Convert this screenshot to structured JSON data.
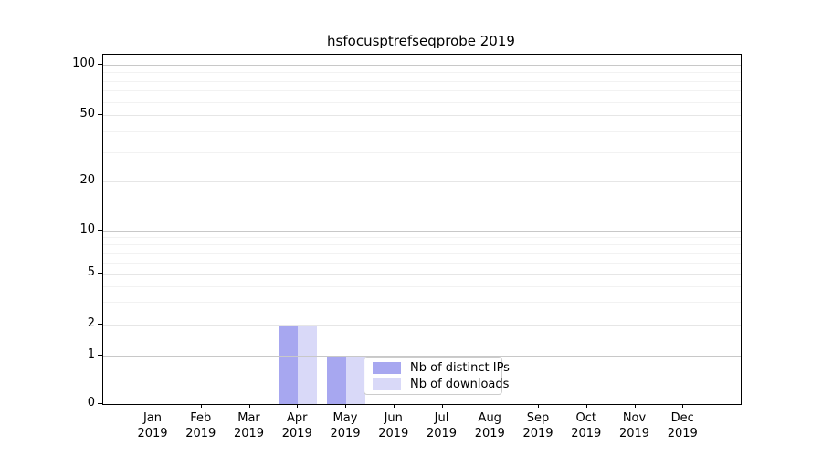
{
  "title": "hsfocusptrefseqprobe 2019",
  "chart_data": {
    "type": "bar",
    "title": "hsfocusptrefseqprobe 2019",
    "categories": [
      "Jan",
      "Feb",
      "Mar",
      "Apr",
      "May",
      "Jun",
      "Jul",
      "Aug",
      "Sep",
      "Oct",
      "Nov",
      "Dec"
    ],
    "category_year": "2019",
    "series": [
      {
        "name": "Nb of distinct IPs",
        "color": "#a7a7f0",
        "values": [
          0,
          0,
          0,
          2,
          1,
          0,
          0,
          0,
          0,
          0,
          0,
          0
        ]
      },
      {
        "name": "Nb of downloads",
        "color": "#d9d9f8",
        "values": [
          0,
          0,
          0,
          2,
          1,
          0,
          0,
          0,
          0,
          0,
          0,
          0
        ]
      }
    ],
    "xlabel": "",
    "ylabel": "",
    "yscale": "symlog",
    "ylim": [
      0,
      110
    ],
    "yticks": [
      0,
      1,
      2,
      5,
      10,
      20,
      50,
      100
    ],
    "minor_grid_values": [
      3,
      4,
      6,
      7,
      8,
      9,
      30,
      40,
      60,
      70,
      80,
      90
    ],
    "grid": "horizontal, major and minor",
    "legend_position": "lower center inside plot",
    "colors": {
      "axis": "#000000",
      "grid_major": "#c8c8c8",
      "grid_minor": "#f2f2f2",
      "background": "#ffffff",
      "legend_border": "#cccccc"
    }
  }
}
